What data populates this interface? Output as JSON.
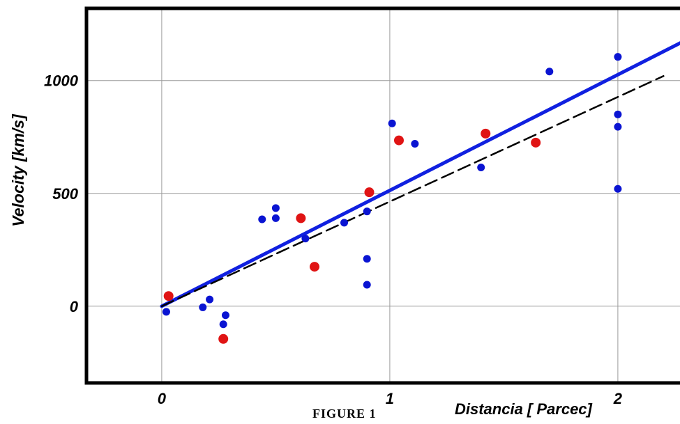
{
  "chart_data": {
    "type": "scatter",
    "title": "",
    "caption": "FIGURE 1",
    "xlabel": "Distancia [ Parcec]",
    "ylabel": "Velocity [km/s]",
    "xlim": [
      -0.33,
      2.3
    ],
    "ylim": [
      -340,
      1320
    ],
    "xticks": [
      {
        "value": 0,
        "label": "0"
      },
      {
        "value": 1,
        "label": "1"
      },
      {
        "value": 2,
        "label": "2"
      }
    ],
    "yticks": [
      {
        "value": 0,
        "label": "0"
      },
      {
        "value": 500,
        "label": "500"
      },
      {
        "value": 1000,
        "label": "1000"
      }
    ],
    "grid": true,
    "series": [
      {
        "color": "#0a14d2",
        "points": [
          {
            "x": 0.02,
            "y": -25
          },
          {
            "x": 0.18,
            "y": -5
          },
          {
            "x": 0.21,
            "y": 30
          },
          {
            "x": 0.28,
            "y": -40
          },
          {
            "x": 0.27,
            "y": -80
          },
          {
            "x": 0.44,
            "y": 385
          },
          {
            "x": 0.5,
            "y": 390
          },
          {
            "x": 0.5,
            "y": 435
          },
          {
            "x": 0.63,
            "y": 300
          },
          {
            "x": 0.8,
            "y": 370
          },
          {
            "x": 0.9,
            "y": 420
          },
          {
            "x": 0.9,
            "y": 210
          },
          {
            "x": 0.9,
            "y": 95
          },
          {
            "x": 1.01,
            "y": 810
          },
          {
            "x": 1.11,
            "y": 720
          },
          {
            "x": 1.4,
            "y": 615
          },
          {
            "x": 1.7,
            "y": 1040
          },
          {
            "x": 2.0,
            "y": 1105
          },
          {
            "x": 2.0,
            "y": 850
          },
          {
            "x": 2.0,
            "y": 795
          },
          {
            "x": 2.0,
            "y": 520
          }
        ]
      },
      {
        "color": "#e01414",
        "points": [
          {
            "x": 0.03,
            "y": 45
          },
          {
            "x": 0.27,
            "y": -145
          },
          {
            "x": 0.61,
            "y": 390
          },
          {
            "x": 0.67,
            "y": 175
          },
          {
            "x": 0.91,
            "y": 505
          },
          {
            "x": 1.04,
            "y": 735
          },
          {
            "x": 1.42,
            "y": 765
          },
          {
            "x": 1.64,
            "y": 725
          }
        ]
      }
    ],
    "lines": [
      {
        "style": "solid",
        "color": "#1020e0",
        "x": [
          0,
          2.3
        ],
        "y": [
          0,
          1180
        ]
      },
      {
        "style": "dashed",
        "color": "#000000",
        "x": [
          0,
          2.2
        ],
        "y": [
          0,
          1020
        ]
      }
    ]
  }
}
